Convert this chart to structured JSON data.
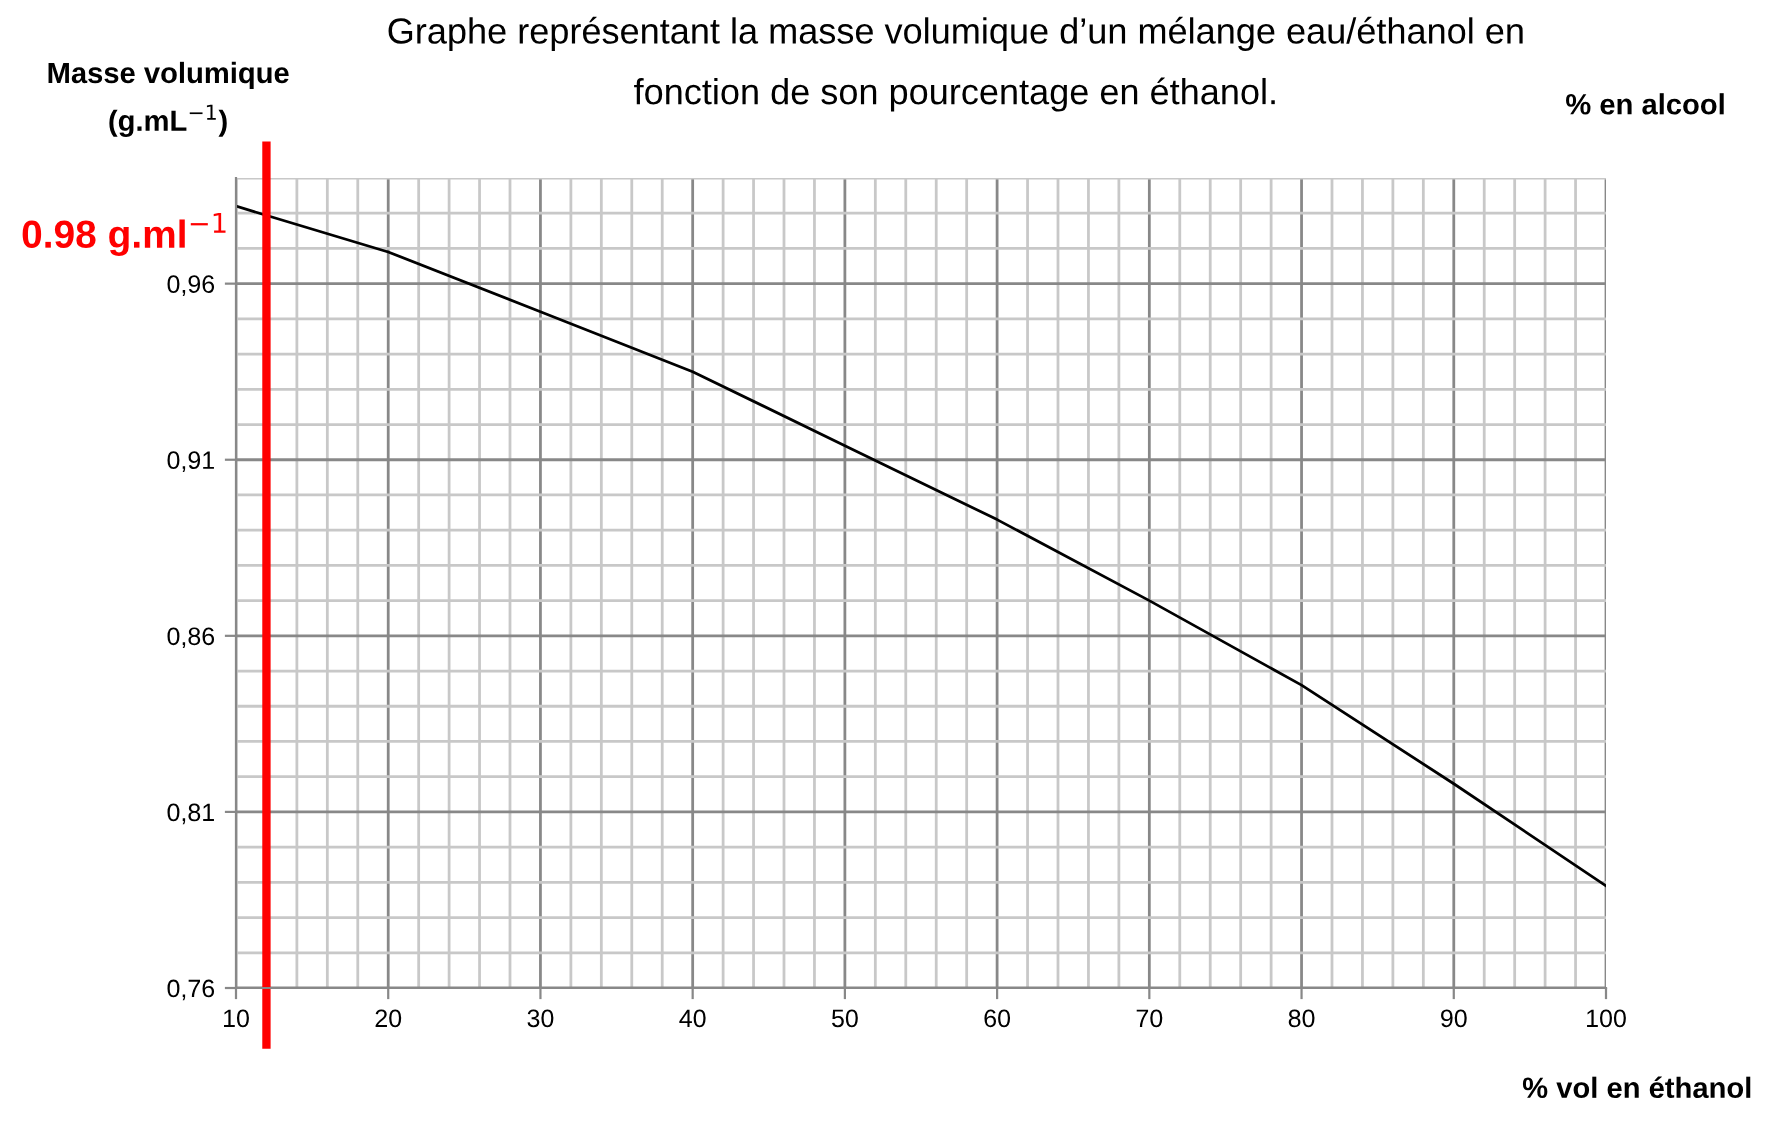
{
  "chart_data": {
    "type": "line",
    "title": "Graphe représentant la masse volumique d’un mélange eau/éthanol en\nfonction de son pourcentage en éthanol.",
    "xlabel": "% vol en éthanol",
    "ylabel": "Masse volumique\n(g.mL$^{−1}$)",
    "annotations": [
      "% en alcool"
    ],
    "x": [
      10,
      20,
      30,
      40,
      50,
      60,
      70,
      80,
      90,
      100
    ],
    "series": [
      {
        "color": "#000000",
        "values": [
          0.982,
          0.969,
          0.952,
          0.935,
          0.914,
          0.893,
          0.87,
          0.846,
          0.818,
          0.789
        ]
      }
    ],
    "xlim": [
      10,
      100
    ],
    "ylim": [
      0.76,
      0.99
    ],
    "xticks": [
      10,
      {
        "value": 12,
        "label": null
      },
      {
        "value": 14,
        "label": null
      },
      {
        "value": 16,
        "label": null
      },
      {
        "value": 18,
        "label": null
      },
      20,
      {
        "value": 22,
        "label": null
      },
      {
        "value": 24,
        "label": null
      },
      {
        "value": 26,
        "label": null
      },
      {
        "value": 28,
        "label": null
      },
      30,
      {
        "value": 32,
        "label": null
      },
      {
        "value": 34,
        "label": null
      },
      {
        "value": 36,
        "label": null
      },
      {
        "value": 38,
        "label": null
      },
      40,
      {
        "value": 42,
        "label": null
      },
      {
        "value": 44,
        "label": null
      },
      {
        "value": 46,
        "label": null
      },
      {
        "value": 48,
        "label": null
      },
      50,
      {
        "value": 52,
        "label": null
      },
      {
        "value": 54,
        "label": null
      },
      {
        "value": 56,
        "label": null
      },
      {
        "value": 58,
        "label": null
      },
      60,
      {
        "value": 62,
        "label": null
      },
      {
        "value": 64,
        "label": null
      },
      {
        "value": 66,
        "label": null
      },
      {
        "value": 68,
        "label": null
      },
      70,
      {
        "value": 72,
        "label": null
      },
      {
        "value": 74,
        "label": null
      },
      {
        "value": 76,
        "label": null
      },
      {
        "value": 78,
        "label": null
      },
      80,
      {
        "value": 82,
        "label": null
      },
      {
        "value": 84,
        "label": null
      },
      {
        "value": 86,
        "label": null
      },
      {
        "value": 88,
        "label": null
      },
      90,
      {
        "value": 92,
        "label": null
      },
      {
        "value": 94,
        "label": null
      },
      {
        "value": 96,
        "label": null
      },
      {
        "value": 98,
        "label": null
      },
      100
    ],
    "yticks": [
      {
        "value": 0.76,
        "label": "0,76"
      },
      {
        "value": 0.77,
        "label": null
      },
      {
        "value": 0.78,
        "label": null
      },
      {
        "value": 0.79,
        "label": null
      },
      {
        "value": 0.8,
        "label": null
      },
      {
        "value": 0.81,
        "label": "0,81"
      },
      {
        "value": 0.82,
        "label": null
      },
      {
        "value": 0.83,
        "label": null
      },
      {
        "value": 0.84,
        "label": null
      },
      {
        "value": 0.85,
        "label": null
      },
      {
        "value": 0.86,
        "label": "0,86"
      },
      {
        "value": 0.87,
        "label": null
      },
      {
        "value": 0.88,
        "label": null
      },
      {
        "value": 0.89,
        "label": null
      },
      {
        "value": 0.9,
        "label": null
      },
      {
        "value": 0.91,
        "label": "0,91"
      },
      {
        "value": 0.92,
        "label": null
      },
      {
        "value": 0.93,
        "label": null
      },
      {
        "value": 0.94,
        "label": null
      },
      {
        "value": 0.95,
        "label": null
      },
      {
        "value": 0.96,
        "label": "0,96"
      },
      {
        "value": 0.97,
        "label": null
      },
      {
        "value": 0.98,
        "label": null
      },
      {
        "value": 0.99,
        "label": null
      }
    ],
    "grid": true,
    "marker": "none",
    "line_style": "solid",
    "ref_lines": [
      {
        "axis": "x",
        "value": 12,
        "label": "0.98 g.ml$^{−1}$",
        "color": "#ff0000"
      }
    ]
  }
}
